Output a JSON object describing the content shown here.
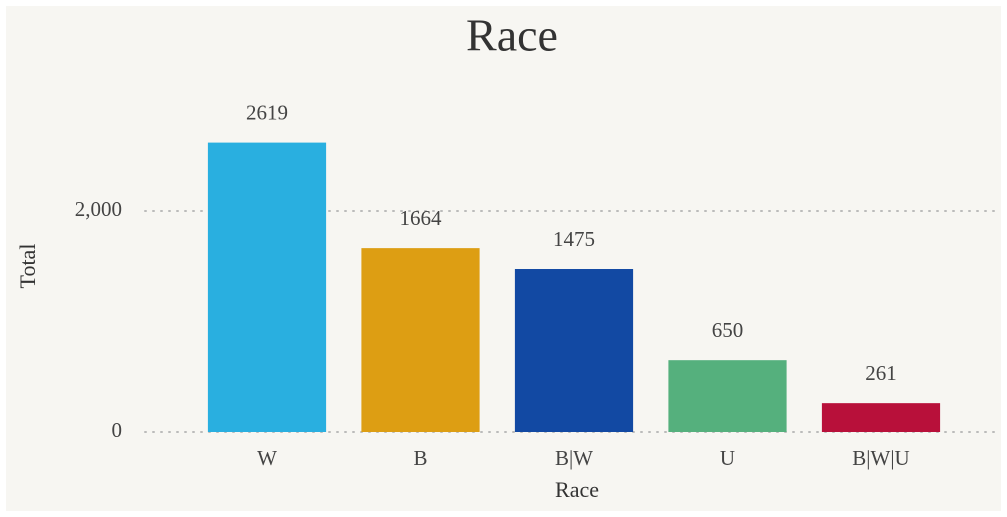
{
  "chart_data": {
    "type": "bar",
    "title": "Race",
    "x_label": "Race",
    "y_label": "Total",
    "categories": [
      "W",
      "B",
      "B|W",
      "U",
      "B|W|U"
    ],
    "values": [
      2619,
      1664,
      1475,
      650,
      261
    ],
    "colors": [
      "#29afe0",
      "#dd9e13",
      "#1249a3",
      "#55b07d",
      "#b8103a"
    ],
    "ylim": [
      0,
      3000
    ],
    "yticks": [
      0,
      {
        "value": 2000,
        "label": "2,000"
      }
    ],
    "grid": true
  }
}
